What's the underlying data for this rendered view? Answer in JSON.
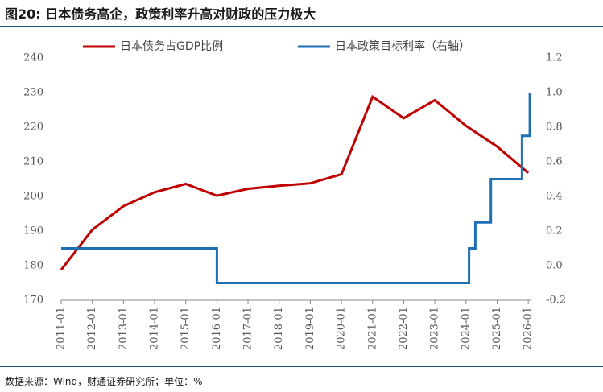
{
  "title": "图20: 日本债务高企，政策利率升高对财政的压力极大",
  "source": "数据来源：Wind，财通证券研究所；单位：%",
  "chart_data": {
    "type": "line",
    "x_ticks": [
      "2011-01",
      "2012-01",
      "2013-01",
      "2014-01",
      "2015-01",
      "2016-01",
      "2017-01",
      "2018-01",
      "2019-01",
      "2020-01",
      "2021-01",
      "2022-01",
      "2023-01",
      "2024-01",
      "2025-01",
      "2026-01"
    ],
    "ylim_left": [
      170,
      240
    ],
    "yticks_left": [
      "170",
      "180",
      "190",
      "200",
      "210",
      "220",
      "230",
      "240"
    ],
    "ylim_right": [
      -0.2,
      1.2
    ],
    "yticks_right": [
      "-0.2",
      "0.0",
      "0.2",
      "0.4",
      "0.6",
      "0.8",
      "1.0",
      "1.2"
    ],
    "grid": false,
    "legend_position": "top",
    "series": [
      {
        "name": "日本债务占GDP比例",
        "axis": "left",
        "color": "#c00000",
        "style": "line",
        "points": [
          {
            "x": 2011.0,
            "y": 178.8
          },
          {
            "x": 2012.0,
            "y": 190.4
          },
          {
            "x": 2013.0,
            "y": 197.2
          },
          {
            "x": 2014.0,
            "y": 201.2
          },
          {
            "x": 2015.0,
            "y": 203.6
          },
          {
            "x": 2016.0,
            "y": 200.2
          },
          {
            "x": 2017.0,
            "y": 202.2
          },
          {
            "x": 2018.0,
            "y": 203.1
          },
          {
            "x": 2019.0,
            "y": 203.8
          },
          {
            "x": 2020.0,
            "y": 206.4
          },
          {
            "x": 2021.0,
            "y": 228.8
          },
          {
            "x": 2022.0,
            "y": 222.6
          },
          {
            "x": 2023.0,
            "y": 227.8
          },
          {
            "x": 2024.0,
            "y": 220.4
          },
          {
            "x": 2025.0,
            "y": 214.4
          },
          {
            "x": 2026.0,
            "y": 206.8
          }
        ]
      },
      {
        "name": "日本政策目标利率（右轴）",
        "axis": "right",
        "color": "#1f6fb5",
        "style": "step",
        "points": [
          {
            "x": 2011.0,
            "y": 0.1
          },
          {
            "x": 2016.0,
            "y": 0.1
          },
          {
            "x": 2016.0,
            "y": -0.1
          },
          {
            "x": 2024.1,
            "y": -0.1
          },
          {
            "x": 2024.1,
            "y": 0.1
          },
          {
            "x": 2024.3,
            "y": 0.1
          },
          {
            "x": 2024.3,
            "y": 0.25
          },
          {
            "x": 2024.8,
            "y": 0.25
          },
          {
            "x": 2024.8,
            "y": 0.5
          },
          {
            "x": 2025.8,
            "y": 0.5
          },
          {
            "x": 2025.8,
            "y": 0.75
          },
          {
            "x": 2026.05,
            "y": 0.75
          },
          {
            "x": 2026.05,
            "y": 1.0
          }
        ]
      }
    ]
  }
}
